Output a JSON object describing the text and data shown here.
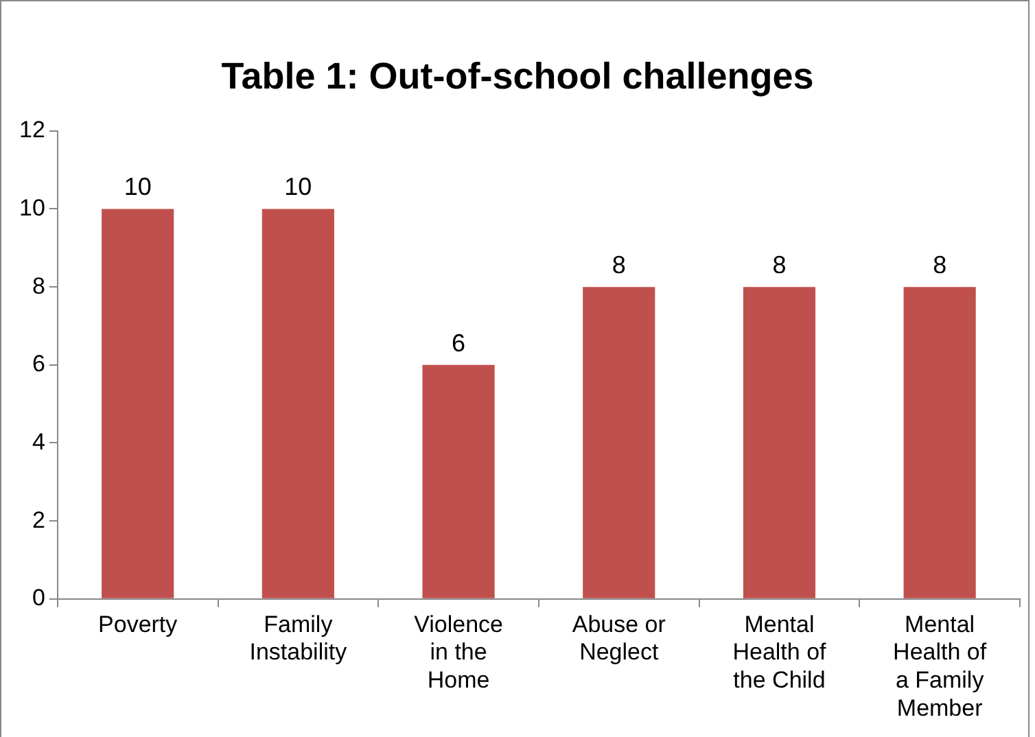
{
  "chart_data": {
    "type": "bar",
    "title": "Table 1: Out-of-school challenges",
    "categories": [
      "Poverty",
      "Family Instability",
      "Violence in the Home",
      "Abuse or Neglect",
      "Mental Health of the Child",
      "Mental Health of a Family Member"
    ],
    "values": [
      10,
      10,
      6,
      8,
      8,
      8
    ],
    "color": "#c0504d",
    "ylim": [
      0,
      12
    ],
    "yticks": [
      0,
      2,
      4,
      6,
      8,
      10,
      12
    ],
    "grid": false,
    "legend": false,
    "data_labels": true
  }
}
